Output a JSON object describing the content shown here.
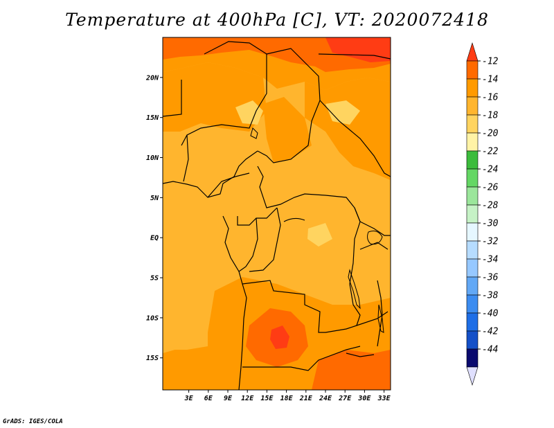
{
  "title": "Temperature at 400hPa [C], VT: 2020072418",
  "credit": "GrADS: IGES/COLA",
  "map": {
    "lat_range": [
      -19,
      25
    ],
    "lon_range": [
      -1,
      34
    ],
    "lat_ticks": [
      {
        "value": 20,
        "label": "20N"
      },
      {
        "value": 15,
        "label": "15N"
      },
      {
        "value": 10,
        "label": "10N"
      },
      {
        "value": 5,
        "label": "5N"
      },
      {
        "value": 0,
        "label": "EQ"
      },
      {
        "value": -5,
        "label": "5S"
      },
      {
        "value": -10,
        "label": "10S"
      },
      {
        "value": -15,
        "label": "15S"
      }
    ],
    "lon_ticks": [
      {
        "value": 3,
        "label": "3E"
      },
      {
        "value": 6,
        "label": "6E"
      },
      {
        "value": 9,
        "label": "9E"
      },
      {
        "value": 12,
        "label": "12E"
      },
      {
        "value": 15,
        "label": "15E"
      },
      {
        "value": 18,
        "label": "18E"
      },
      {
        "value": 21,
        "label": "21E"
      },
      {
        "value": 24,
        "label": "24E"
      },
      {
        "value": 27,
        "label": "27E"
      },
      {
        "value": 30,
        "label": "30E"
      },
      {
        "value": 33,
        "label": "33E"
      }
    ]
  },
  "colorbar": {
    "labels": [
      "-12",
      "-14",
      "-16",
      "-18",
      "-20",
      "-22",
      "-24",
      "-26",
      "-28",
      "-30",
      "-32",
      "-34",
      "-36",
      "-38",
      "-40",
      "-42",
      "-44"
    ],
    "colors": [
      "#ff3c14",
      "#ff6a00",
      "#ff9a00",
      "#ffb52e",
      "#ffd460",
      "#fff3a6",
      "#3cbc3c",
      "#64d764",
      "#9be69b",
      "#c6f2c6",
      "#e6f7ff",
      "#b6dcff",
      "#96c8ff",
      "#62a8f5",
      "#3c8cf0",
      "#1e6ee6",
      "#1450c8",
      "#0a0a6e",
      "#e0e0ff"
    ]
  }
}
